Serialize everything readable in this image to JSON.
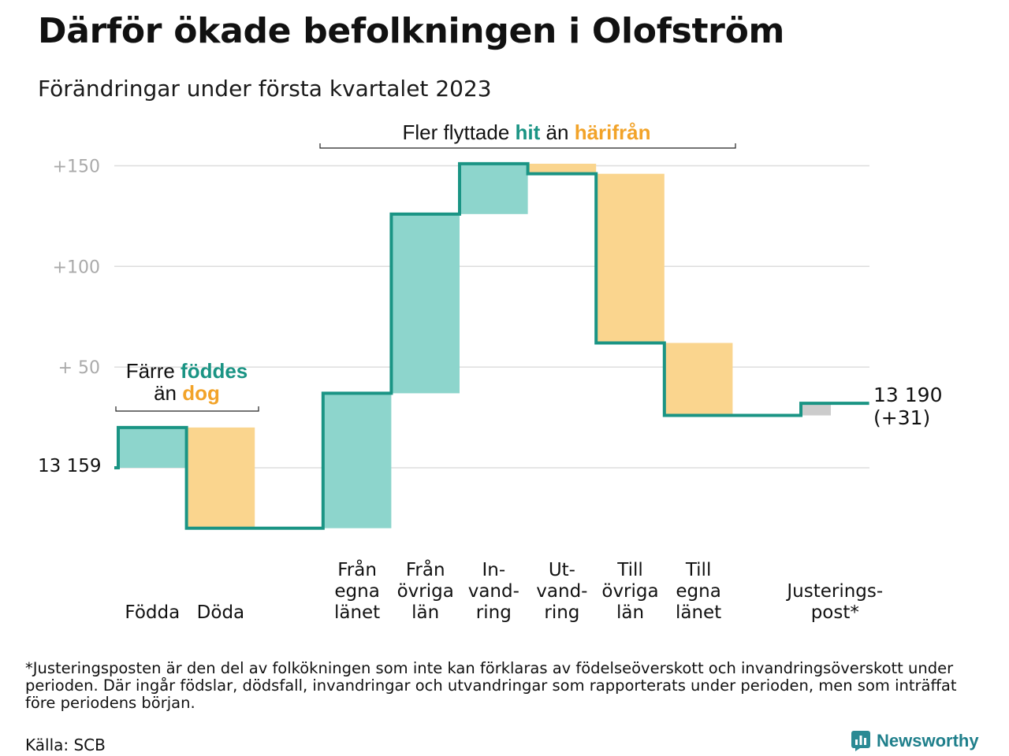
{
  "title": "Därför ökade befolkningen i Olofström",
  "subtitle": "Förändringar under första kvartalet 2023",
  "chart_data": {
    "type": "waterfall",
    "start_value": 13159,
    "start_label": "13 159",
    "end_value": 13190,
    "end_label": "13 190",
    "end_change_label": "(+31)",
    "ylim": [
      -30,
      160
    ],
    "y_ticks": [
      {
        "value": 150,
        "label": "+150"
      },
      {
        "value": 100,
        "label": "+100"
      },
      {
        "value": 50,
        "label": "+ 50"
      },
      {
        "value": 0,
        "label": ""
      }
    ],
    "grid": true,
    "colors": {
      "increase": "#8dd5cc",
      "decrease": "#fad58e",
      "adjustment": "#cccccc",
      "line": "#1a9484",
      "gridline": "#dddddd",
      "teal_text": "#1a9484",
      "orange_text": "#f2a329"
    },
    "steps": [
      {
        "label": [
          "Födda"
        ],
        "change": 20,
        "kind": "increase"
      },
      {
        "label": [
          "Döda"
        ],
        "change": -50,
        "kind": "decrease"
      },
      {
        "label": [],
        "change": 0,
        "kind": "gap"
      },
      {
        "label": [
          "Från",
          "egna",
          "länet"
        ],
        "change": 67,
        "kind": "increase"
      },
      {
        "label": [
          "Från",
          "övriga",
          "län"
        ],
        "change": 89,
        "kind": "increase"
      },
      {
        "label": [
          "In-",
          "vand-",
          "ring"
        ],
        "change": 25,
        "kind": "increase"
      },
      {
        "label": [
          "Ut-",
          "vand-",
          "ring"
        ],
        "change": -5,
        "kind": "decrease"
      },
      {
        "label": [
          "Till",
          "övriga",
          "län"
        ],
        "change": -84,
        "kind": "decrease"
      },
      {
        "label": [
          "Till",
          "egna",
          "länet"
        ],
        "change": -36,
        "kind": "decrease"
      },
      {
        "label": [],
        "change": 0,
        "kind": "gap"
      },
      {
        "label": [
          "Justerings-",
          "post*"
        ],
        "change": 6,
        "kind": "adjustment"
      }
    ],
    "annotations": {
      "births_deaths": {
        "line1": [
          "Färre ",
          "föddes"
        ],
        "line2": [
          "än ",
          "dog"
        ]
      },
      "migration": [
        "Fler flyttade ",
        "hit",
        " än ",
        "härifrån"
      ]
    }
  },
  "footnote": "*Justeringsposten är den del av folkökningen som inte kan förklaras av födelseöverskott och invandringsöverskott under perioden. Där ingår födslar, dödsfall, invandringar och utvandringar som rapporterats under perioden, men som inträffat före periodens början.",
  "source": "Källa: SCB",
  "brand": {
    "name": "Newsworthy",
    "icon": "bar-chart-logo-icon"
  }
}
